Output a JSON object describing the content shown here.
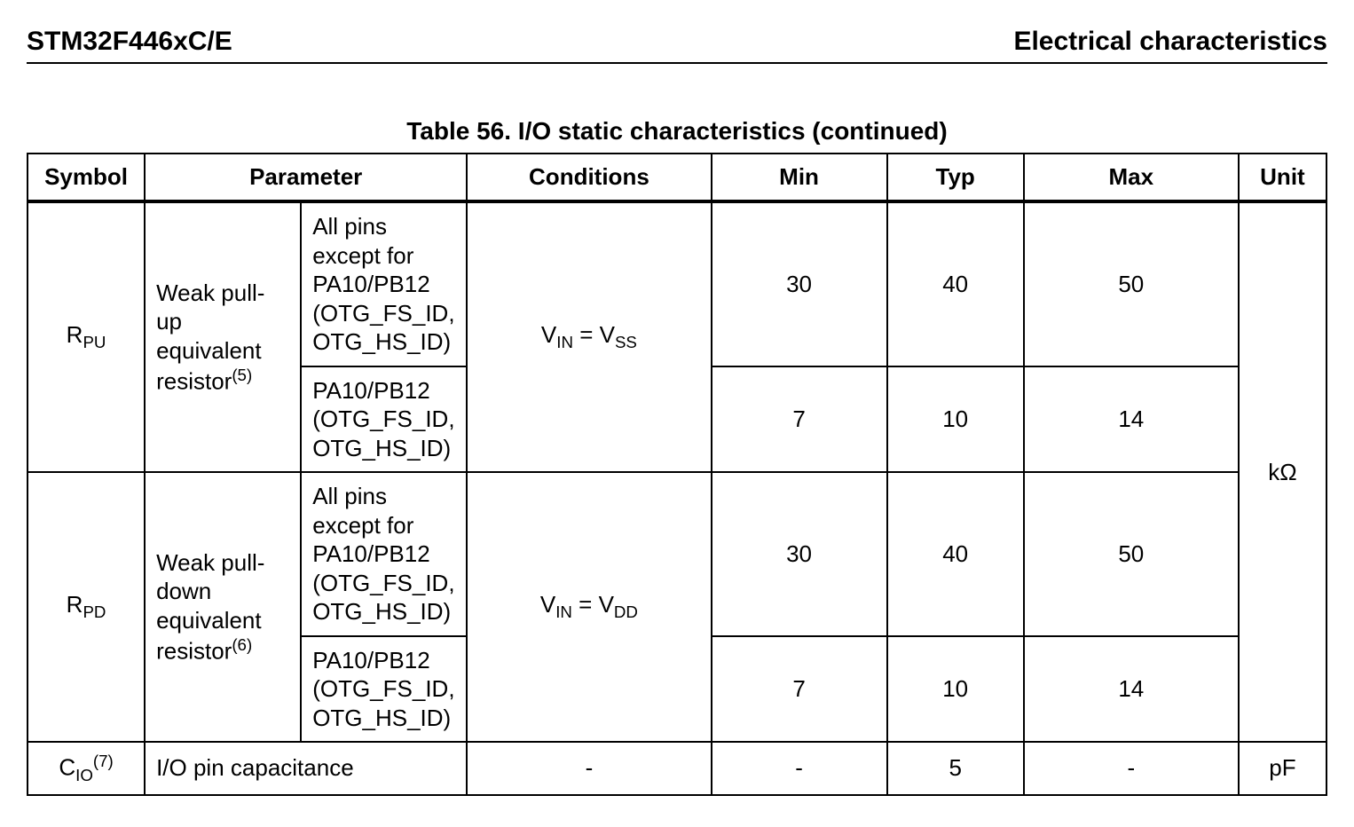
{
  "header": {
    "left": "STM32F446xC/E",
    "right": "Electrical characteristics"
  },
  "table": {
    "title": "Table 56. I/O static characteristics (continued)",
    "columns": [
      "Symbol",
      "Parameter",
      "Conditions",
      "Min",
      "Typ",
      "Max",
      "Unit"
    ],
    "unit_kohm": "kΩ",
    "unit_pf": "pF",
    "dash": "-",
    "rpu": {
      "symbol_base": "R",
      "symbol_sub": "PU",
      "param_line1": "Weak pull-up",
      "param_line2": "equivalent",
      "param_line3_pre": "resistor",
      "param_line3_sup": "(5)",
      "cond_pre": "V",
      "cond_sub1": "IN",
      "cond_mid": " = V",
      "cond_sub2": "SS",
      "sub_a": "All pins except for PA10/PB12 (OTG_FS_ID, OTG_HS_ID)",
      "sub_b": "PA10/PB12 (OTG_FS_ID, OTG_HS_ID)",
      "row_a": {
        "min": "30",
        "typ": "40",
        "max": "50"
      },
      "row_b": {
        "min": "7",
        "typ": "10",
        "max": "14"
      }
    },
    "rpd": {
      "symbol_base": "R",
      "symbol_sub": "PD",
      "param_line1": "Weak pull-",
      "param_line2": "down",
      "param_line3": "equivalent",
      "param_line4_pre": "resistor",
      "param_line4_sup": "(6)",
      "cond_pre": "V",
      "cond_sub1": "IN",
      "cond_mid": " = V",
      "cond_sub2": "DD",
      "sub_a": "All pins except for PA10/PB12 (OTG_FS_ID, OTG_HS_ID)",
      "sub_b": "PA10/PB12 (OTG_FS_ID, OTG_HS_ID)",
      "row_a": {
        "min": "30",
        "typ": "40",
        "max": "50"
      },
      "row_b": {
        "min": "7",
        "typ": "10",
        "max": "14"
      }
    },
    "cio": {
      "symbol_base": "C",
      "symbol_sub": "IO",
      "symbol_sup": "(7)",
      "param": "I/O pin capacitance",
      "typ": "5"
    }
  }
}
